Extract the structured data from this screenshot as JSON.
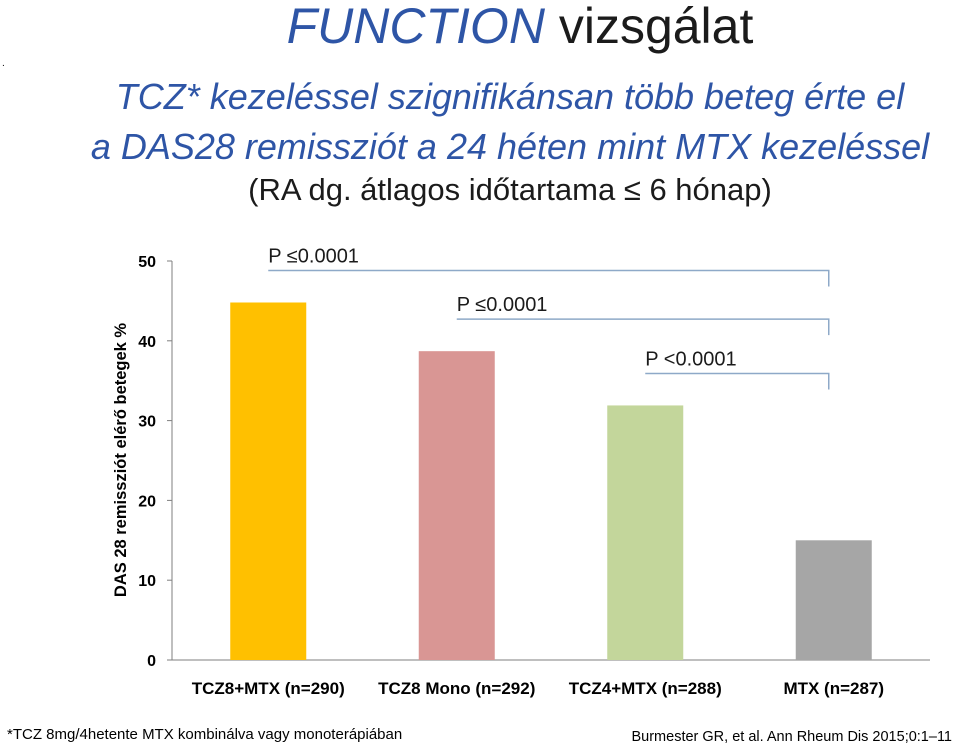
{
  "header": {
    "title_em": "FUNCTION",
    "title_rest": " vizsgálat",
    "subtitle_line1": "TCZ* kezeléssel szignifikánsan több beteg érte el",
    "subtitle_line2": "a DAS28  remissziót a 24 héten  mint MTX kezeléssel",
    "subtitle_line3": "(RA dg. átlagos időtartama ≤ 6 hónap)",
    "marker": "."
  },
  "chart_data": {
    "type": "bar",
    "categories": [
      "TCZ8+MTX (n=290)",
      "TCZ8 Mono (n=292)",
      "TCZ4+MTX (n=288)",
      "MTX (n=287)"
    ],
    "values": [
      44.8,
      38.7,
      31.9,
      15.0
    ],
    "colors": [
      "#ffc000",
      "#d99694",
      "#c3d69b",
      "#a6a6a6"
    ],
    "ylabel": "DAS 28 remissziót elérő betegek %",
    "ylim": [
      0,
      50
    ],
    "yticks": [
      0,
      10,
      20,
      30,
      40,
      50
    ],
    "ytick_labels": [
      "0",
      "10",
      "20",
      "30",
      "40",
      "50"
    ],
    "comparisons": [
      {
        "label": "P ≤0.0001",
        "from": 0,
        "to": 3
      },
      {
        "label": "P ≤0.0001",
        "from": 1,
        "to": 3
      },
      {
        "label": "P <0.0001",
        "from": 2,
        "to": 3
      }
    ],
    "bracket_color": "#8ea9c8"
  },
  "footer": {
    "footnote": "*TCZ 8mg/4hetente MTX kombinálva vagy monoterápiában",
    "source": "Burmester GR, et al. Ann Rheum Dis 2015;0:1–11"
  }
}
